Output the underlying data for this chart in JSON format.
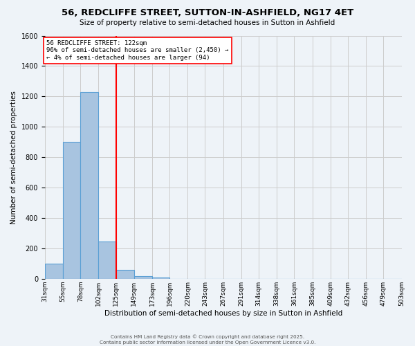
{
  "title": "56, REDCLIFFE STREET, SUTTON-IN-ASHFIELD, NG17 4ET",
  "subtitle": "Size of property relative to semi-detached houses in Sutton in Ashfield",
  "xlabel": "Distribution of semi-detached houses by size in Sutton in Ashfield",
  "ylabel": "Number of semi-detached properties",
  "bar_color": "#a8c4e0",
  "bar_edge_color": "#5a9fd4",
  "bins": [
    31,
    55,
    78,
    102,
    125,
    149,
    173,
    196,
    220,
    243,
    267,
    291,
    314,
    338,
    361,
    385,
    409,
    432,
    456,
    479,
    503
  ],
  "bin_labels": [
    "31sqm",
    "55sqm",
    "78sqm",
    "102sqm",
    "125sqm",
    "149sqm",
    "173sqm",
    "196sqm",
    "220sqm",
    "243sqm",
    "267sqm",
    "291sqm",
    "314sqm",
    "338sqm",
    "361sqm",
    "385sqm",
    "409sqm",
    "432sqm",
    "456sqm",
    "479sqm",
    "503sqm"
  ],
  "counts": [
    100,
    900,
    1230,
    245,
    60,
    15,
    10,
    0,
    0,
    0,
    0,
    0,
    0,
    0,
    0,
    0,
    0,
    0,
    0,
    0
  ],
  "property_size": 122,
  "red_line_x": 125,
  "annotation_line1": "56 REDCLIFFE STREET: 122sqm",
  "annotation_line2": "96% of semi-detached houses are smaller (2,450) →",
  "annotation_line3": "← 4% of semi-detached houses are larger (94)",
  "ylim": [
    0,
    1600
  ],
  "yticks": [
    0,
    200,
    400,
    600,
    800,
    1000,
    1200,
    1400,
    1600
  ],
  "grid_color": "#cccccc",
  "background_color": "#eef3f8",
  "footer_line1": "Contains HM Land Registry data © Crown copyright and database right 2025.",
  "footer_line2": "Contains public sector information licensed under the Open Government Licence v3.0."
}
